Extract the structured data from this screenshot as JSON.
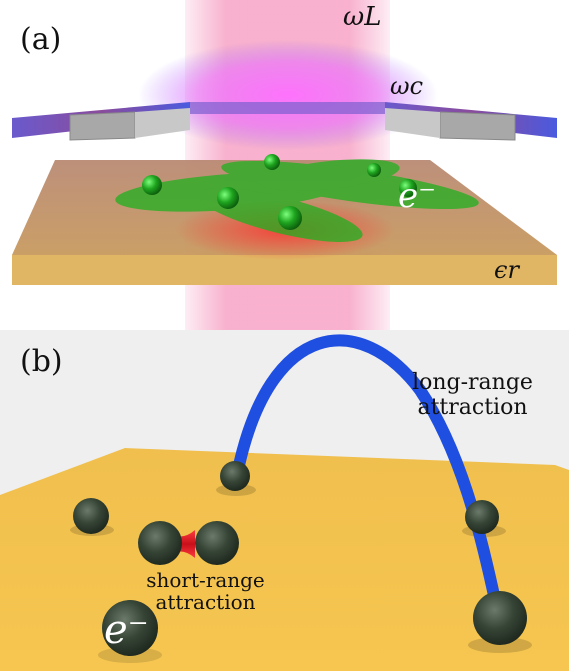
{
  "panel_a": {
    "label": "(a)",
    "omega_L": "ωL",
    "omega_c": "ωc",
    "electron": "e⁻",
    "epsilon_r": "ϵr"
  },
  "panel_b": {
    "label": "(b)",
    "long_range_line1": "long-range",
    "long_range_line2": "attraction",
    "short_range_line1": "short-range",
    "short_range_line2": "attraction",
    "electron": "e⁻"
  },
  "colors": {
    "laser": "#f7a8c8",
    "cavity": "#6a5acd",
    "substrate": "#c08a5a",
    "electron_green": "#1fa51f",
    "surface_b": "#f2c04a",
    "electron_dark": "#2e3a2e",
    "long_range": "#1f4fe0",
    "short_range": "#e0202a"
  }
}
